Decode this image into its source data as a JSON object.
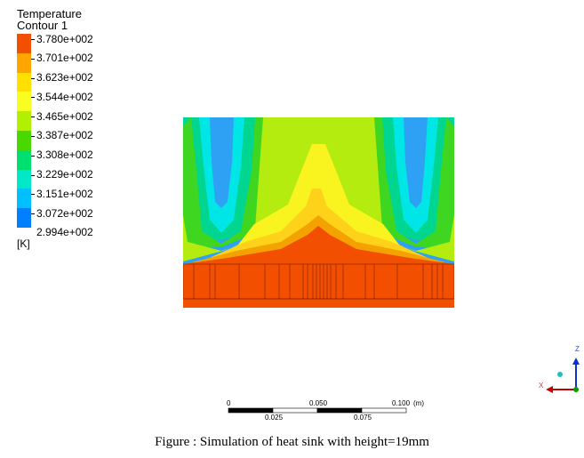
{
  "legend": {
    "title": "Temperature",
    "subtitle": "Contour 1",
    "unit": "[K]",
    "labels": [
      "3.780e+002",
      "3.701e+002",
      "3.623e+002",
      "3.544e+002",
      "3.465e+002",
      "3.387e+002",
      "3.308e+002",
      "3.229e+002",
      "3.151e+002",
      "3.072e+002",
      "2.994e+002"
    ],
    "colors": [
      "#f24f00",
      "#f07f00",
      "#ffbf00",
      "#ffff00",
      "#bfff00",
      "#6fff00",
      "#00ff4f",
      "#00ffaf",
      "#00f0ff",
      "#00a8ff",
      "#0040ff"
    ]
  },
  "scale": {
    "labels_top": [
      "0",
      "0.050",
      "0.100"
    ],
    "unit": "(m)",
    "labels_bottom": [
      "0.025",
      "0.075"
    ]
  },
  "triad": {
    "z": "Z",
    "x": "X"
  },
  "caption": "Figure : Simulation of heat sink with height=19mm"
}
